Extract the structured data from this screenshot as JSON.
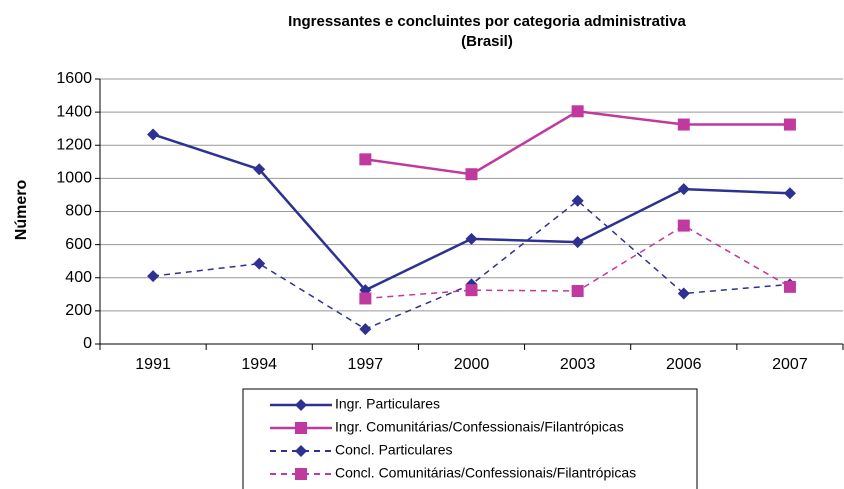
{
  "chart_data": {
    "type": "line",
    "title": "Ingressantes e concluintes por categoria administrativa",
    "subtitle": "(Brasil)",
    "y_label": "Número",
    "categories": [
      "1991",
      "1994",
      "1997",
      "2000",
      "2003",
      "2006",
      "2007"
    ],
    "series": [
      {
        "name": "Ingr. Particulares",
        "color": "#2e3192",
        "dashed": false,
        "marker": "diamond",
        "values": [
          1265,
          1055,
          325,
          635,
          615,
          935,
          910
        ]
      },
      {
        "name": "Ingr. Comunitárias/Confessionais/Filantrópicas",
        "color": "#c0399f",
        "dashed": false,
        "marker": "square",
        "values": [
          null,
          null,
          1115,
          1025,
          1405,
          1325,
          1325
        ]
      },
      {
        "name": "Concl. Particulares",
        "color": "#2e3192",
        "dashed": true,
        "marker": "diamond",
        "values": [
          410,
          485,
          90,
          360,
          865,
          305,
          360
        ]
      },
      {
        "name": "Concl. Comunitárias/Confessionais/Filantrópicas",
        "color": "#c0399f",
        "dashed": true,
        "marker": "square",
        "values": [
          null,
          null,
          275,
          325,
          320,
          715,
          345
        ]
      }
    ],
    "ylim": [
      0,
      1600
    ],
    "yticks": [
      0,
      200,
      400,
      600,
      800,
      1000,
      1200,
      1400,
      1600
    ],
    "grid": true,
    "legend": "bottom"
  }
}
